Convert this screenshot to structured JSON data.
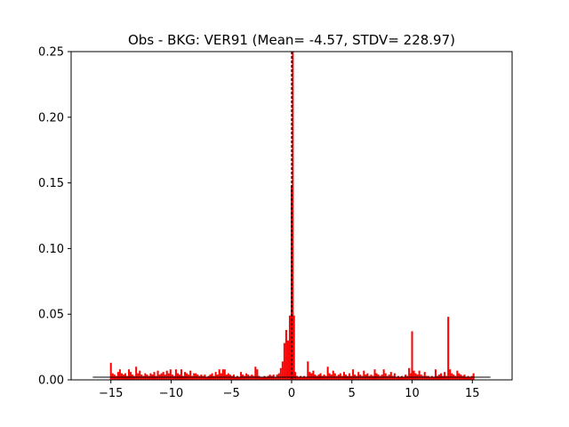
{
  "chart_data": {
    "type": "bar",
    "title": "Obs - BKG: VER91 (Mean= -4.57, STDV= 228.97)",
    "xlabel": "",
    "ylabel": "",
    "xlim": [
      -18.3,
      18.3
    ],
    "ylim": [
      0,
      0.25
    ],
    "xticks": [
      -15,
      -10,
      -5,
      0,
      5,
      10,
      15
    ],
    "xtick_labels": [
      "−15",
      "−10",
      "−5",
      "0",
      "5",
      "10",
      "15"
    ],
    "yticks": [
      0.0,
      0.05,
      0.1,
      0.15,
      0.2,
      0.25
    ],
    "ytick_labels": [
      "0.00",
      "0.05",
      "0.10",
      "0.15",
      "0.20",
      "0.25"
    ],
    "grid": false,
    "bar_color": "#ff0000",
    "bin_width": 0.15,
    "baseline": {
      "x": [
        -16.5,
        16.5
      ],
      "y": 0.002,
      "color": "#000000"
    },
    "mean_line": {
      "x": 0.0,
      "color": "#000000",
      "style": "dashed"
    },
    "bins": [
      {
        "x": -15.0,
        "y": 0.013
      },
      {
        "x": -14.85,
        "y": 0.005
      },
      {
        "x": -14.7,
        "y": 0.004
      },
      {
        "x": -14.55,
        "y": 0.003
      },
      {
        "x": -14.4,
        "y": 0.006
      },
      {
        "x": -14.25,
        "y": 0.008
      },
      {
        "x": -14.1,
        "y": 0.005
      },
      {
        "x": -13.95,
        "y": 0.004
      },
      {
        "x": -13.8,
        "y": 0.005
      },
      {
        "x": -13.65,
        "y": 0.003
      },
      {
        "x": -13.5,
        "y": 0.008
      },
      {
        "x": -13.35,
        "y": 0.006
      },
      {
        "x": -13.2,
        "y": 0.004
      },
      {
        "x": -13.05,
        "y": 0.003
      },
      {
        "x": -12.9,
        "y": 0.01
      },
      {
        "x": -12.75,
        "y": 0.005
      },
      {
        "x": -12.6,
        "y": 0.007
      },
      {
        "x": -12.45,
        "y": 0.004
      },
      {
        "x": -12.3,
        "y": 0.003
      },
      {
        "x": -12.15,
        "y": 0.005
      },
      {
        "x": -12.0,
        "y": 0.004
      },
      {
        "x": -11.85,
        "y": 0.003
      },
      {
        "x": -11.7,
        "y": 0.005
      },
      {
        "x": -11.55,
        "y": 0.004
      },
      {
        "x": -11.4,
        "y": 0.006
      },
      {
        "x": -11.25,
        "y": 0.003
      },
      {
        "x": -11.1,
        "y": 0.007
      },
      {
        "x": -10.95,
        "y": 0.004
      },
      {
        "x": -10.8,
        "y": 0.005
      },
      {
        "x": -10.65,
        "y": 0.006
      },
      {
        "x": -10.5,
        "y": 0.004
      },
      {
        "x": -10.35,
        "y": 0.007
      },
      {
        "x": -10.2,
        "y": 0.005
      },
      {
        "x": -10.05,
        "y": 0.008
      },
      {
        "x": -9.9,
        "y": 0.004
      },
      {
        "x": -9.75,
        "y": 0.003
      },
      {
        "x": -9.6,
        "y": 0.008
      },
      {
        "x": -9.45,
        "y": 0.005
      },
      {
        "x": -9.3,
        "y": 0.004
      },
      {
        "x": -9.15,
        "y": 0.008
      },
      {
        "x": -9.0,
        "y": 0.003
      },
      {
        "x": -8.85,
        "y": 0.006
      },
      {
        "x": -8.7,
        "y": 0.005
      },
      {
        "x": -8.55,
        "y": 0.004
      },
      {
        "x": -8.4,
        "y": 0.007
      },
      {
        "x": -8.25,
        "y": 0.003
      },
      {
        "x": -8.1,
        "y": 0.005
      },
      {
        "x": -7.95,
        "y": 0.005
      },
      {
        "x": -7.8,
        "y": 0.004
      },
      {
        "x": -7.65,
        "y": 0.003
      },
      {
        "x": -7.5,
        "y": 0.004
      },
      {
        "x": -7.35,
        "y": 0.003
      },
      {
        "x": -7.2,
        "y": 0.004
      },
      {
        "x": -7.05,
        "y": 0.002
      },
      {
        "x": -6.9,
        "y": 0.003
      },
      {
        "x": -6.75,
        "y": 0.004
      },
      {
        "x": -6.6,
        "y": 0.005
      },
      {
        "x": -6.45,
        "y": 0.003
      },
      {
        "x": -6.3,
        "y": 0.006
      },
      {
        "x": -6.15,
        "y": 0.004
      },
      {
        "x": -6.0,
        "y": 0.008
      },
      {
        "x": -5.85,
        "y": 0.005
      },
      {
        "x": -5.7,
        "y": 0.008
      },
      {
        "x": -5.55,
        "y": 0.008
      },
      {
        "x": -5.4,
        "y": 0.004
      },
      {
        "x": -5.25,
        "y": 0.005
      },
      {
        "x": -5.1,
        "y": 0.004
      },
      {
        "x": -4.95,
        "y": 0.003
      },
      {
        "x": -4.8,
        "y": 0.004
      },
      {
        "x": -4.65,
        "y": 0.002
      },
      {
        "x": -4.5,
        "y": 0.003
      },
      {
        "x": -4.35,
        "y": 0.002
      },
      {
        "x": -4.2,
        "y": 0.006
      },
      {
        "x": -4.05,
        "y": 0.004
      },
      {
        "x": -3.9,
        "y": 0.003
      },
      {
        "x": -3.75,
        "y": 0.005
      },
      {
        "x": -3.6,
        "y": 0.004
      },
      {
        "x": -3.45,
        "y": 0.003
      },
      {
        "x": -3.3,
        "y": 0.004
      },
      {
        "x": -3.15,
        "y": 0.003
      },
      {
        "x": -3.0,
        "y": 0.01
      },
      {
        "x": -2.85,
        "y": 0.008
      },
      {
        "x": -2.7,
        "y": 0.003
      },
      {
        "x": -2.55,
        "y": 0.002
      },
      {
        "x": -2.4,
        "y": 0.002
      },
      {
        "x": -2.25,
        "y": 0.003
      },
      {
        "x": -2.1,
        "y": 0.002
      },
      {
        "x": -1.95,
        "y": 0.003
      },
      {
        "x": -1.8,
        "y": 0.004
      },
      {
        "x": -1.65,
        "y": 0.003
      },
      {
        "x": -1.5,
        "y": 0.004
      },
      {
        "x": -1.35,
        "y": 0.002
      },
      {
        "x": -1.2,
        "y": 0.004
      },
      {
        "x": -1.05,
        "y": 0.005
      },
      {
        "x": -0.9,
        "y": 0.009
      },
      {
        "x": -0.75,
        "y": 0.014
      },
      {
        "x": -0.6,
        "y": 0.028
      },
      {
        "x": -0.45,
        "y": 0.038
      },
      {
        "x": -0.3,
        "y": 0.03
      },
      {
        "x": -0.15,
        "y": 0.049
      },
      {
        "x": 0.0,
        "y": 0.148
      },
      {
        "x": 0.1,
        "y": 0.25
      },
      {
        "x": 0.2,
        "y": 0.049
      },
      {
        "x": 0.3,
        "y": 0.006
      },
      {
        "x": 0.45,
        "y": 0.003
      },
      {
        "x": 0.6,
        "y": 0.002
      },
      {
        "x": 0.75,
        "y": 0.003
      },
      {
        "x": 0.9,
        "y": 0.002
      },
      {
        "x": 1.05,
        "y": 0.003
      },
      {
        "x": 1.2,
        "y": 0.002
      },
      {
        "x": 1.35,
        "y": 0.014
      },
      {
        "x": 1.5,
        "y": 0.006
      },
      {
        "x": 1.65,
        "y": 0.005
      },
      {
        "x": 1.8,
        "y": 0.007
      },
      {
        "x": 1.95,
        "y": 0.004
      },
      {
        "x": 2.1,
        "y": 0.003
      },
      {
        "x": 2.25,
        "y": 0.004
      },
      {
        "x": 2.4,
        "y": 0.005
      },
      {
        "x": 2.55,
        "y": 0.003
      },
      {
        "x": 2.7,
        "y": 0.004
      },
      {
        "x": 2.85,
        "y": 0.003
      },
      {
        "x": 3.0,
        "y": 0.01
      },
      {
        "x": 3.15,
        "y": 0.005
      },
      {
        "x": 3.3,
        "y": 0.004
      },
      {
        "x": 3.45,
        "y": 0.007
      },
      {
        "x": 3.6,
        "y": 0.005
      },
      {
        "x": 3.75,
        "y": 0.003
      },
      {
        "x": 3.9,
        "y": 0.004
      },
      {
        "x": 4.05,
        "y": 0.005
      },
      {
        "x": 4.2,
        "y": 0.003
      },
      {
        "x": 4.35,
        "y": 0.006
      },
      {
        "x": 4.5,
        "y": 0.004
      },
      {
        "x": 4.65,
        "y": 0.003
      },
      {
        "x": 4.8,
        "y": 0.005
      },
      {
        "x": 4.95,
        "y": 0.003
      },
      {
        "x": 5.1,
        "y": 0.008
      },
      {
        "x": 5.25,
        "y": 0.004
      },
      {
        "x": 5.4,
        "y": 0.003
      },
      {
        "x": 5.55,
        "y": 0.006
      },
      {
        "x": 5.7,
        "y": 0.004
      },
      {
        "x": 5.85,
        "y": 0.003
      },
      {
        "x": 6.0,
        "y": 0.007
      },
      {
        "x": 6.15,
        "y": 0.004
      },
      {
        "x": 6.3,
        "y": 0.005
      },
      {
        "x": 6.45,
        "y": 0.003
      },
      {
        "x": 6.6,
        "y": 0.004
      },
      {
        "x": 6.75,
        "y": 0.003
      },
      {
        "x": 6.9,
        "y": 0.008
      },
      {
        "x": 7.05,
        "y": 0.005
      },
      {
        "x": 7.2,
        "y": 0.004
      },
      {
        "x": 7.35,
        "y": 0.003
      },
      {
        "x": 7.5,
        "y": 0.004
      },
      {
        "x": 7.65,
        "y": 0.008
      },
      {
        "x": 7.8,
        "y": 0.005
      },
      {
        "x": 7.95,
        "y": 0.003
      },
      {
        "x": 8.1,
        "y": 0.004
      },
      {
        "x": 8.25,
        "y": 0.006
      },
      {
        "x": 8.4,
        "y": 0.003
      },
      {
        "x": 8.55,
        "y": 0.005
      },
      {
        "x": 8.7,
        "y": 0.002
      },
      {
        "x": 8.85,
        "y": 0.003
      },
      {
        "x": 9.0,
        "y": 0.002
      },
      {
        "x": 9.15,
        "y": 0.003
      },
      {
        "x": 9.3,
        "y": 0.002
      },
      {
        "x": 9.45,
        "y": 0.004
      },
      {
        "x": 9.6,
        "y": 0.003
      },
      {
        "x": 9.75,
        "y": 0.009
      },
      {
        "x": 9.9,
        "y": 0.005
      },
      {
        "x": 10.0,
        "y": 0.037
      },
      {
        "x": 10.15,
        "y": 0.007
      },
      {
        "x": 10.3,
        "y": 0.005
      },
      {
        "x": 10.45,
        "y": 0.004
      },
      {
        "x": 10.6,
        "y": 0.007
      },
      {
        "x": 10.75,
        "y": 0.004
      },
      {
        "x": 10.9,
        "y": 0.003
      },
      {
        "x": 11.05,
        "y": 0.006
      },
      {
        "x": 11.2,
        "y": 0.003
      },
      {
        "x": 11.35,
        "y": 0.003
      },
      {
        "x": 11.5,
        "y": 0.002
      },
      {
        "x": 11.65,
        "y": 0.003
      },
      {
        "x": 11.8,
        "y": 0.002
      },
      {
        "x": 11.95,
        "y": 0.008
      },
      {
        "x": 12.1,
        "y": 0.003
      },
      {
        "x": 12.25,
        "y": 0.004
      },
      {
        "x": 12.4,
        "y": 0.005
      },
      {
        "x": 12.55,
        "y": 0.003
      },
      {
        "x": 12.7,
        "y": 0.006
      },
      {
        "x": 12.85,
        "y": 0.003
      },
      {
        "x": 13.0,
        "y": 0.048
      },
      {
        "x": 13.15,
        "y": 0.008
      },
      {
        "x": 13.3,
        "y": 0.005
      },
      {
        "x": 13.45,
        "y": 0.004
      },
      {
        "x": 13.6,
        "y": 0.003
      },
      {
        "x": 13.75,
        "y": 0.007
      },
      {
        "x": 13.9,
        "y": 0.005
      },
      {
        "x": 14.05,
        "y": 0.004
      },
      {
        "x": 14.2,
        "y": 0.003
      },
      {
        "x": 14.35,
        "y": 0.004
      },
      {
        "x": 14.5,
        "y": 0.002
      },
      {
        "x": 14.65,
        "y": 0.003
      },
      {
        "x": 14.8,
        "y": 0.002
      },
      {
        "x": 14.95,
        "y": 0.003
      },
      {
        "x": 15.1,
        "y": 0.005
      }
    ]
  }
}
